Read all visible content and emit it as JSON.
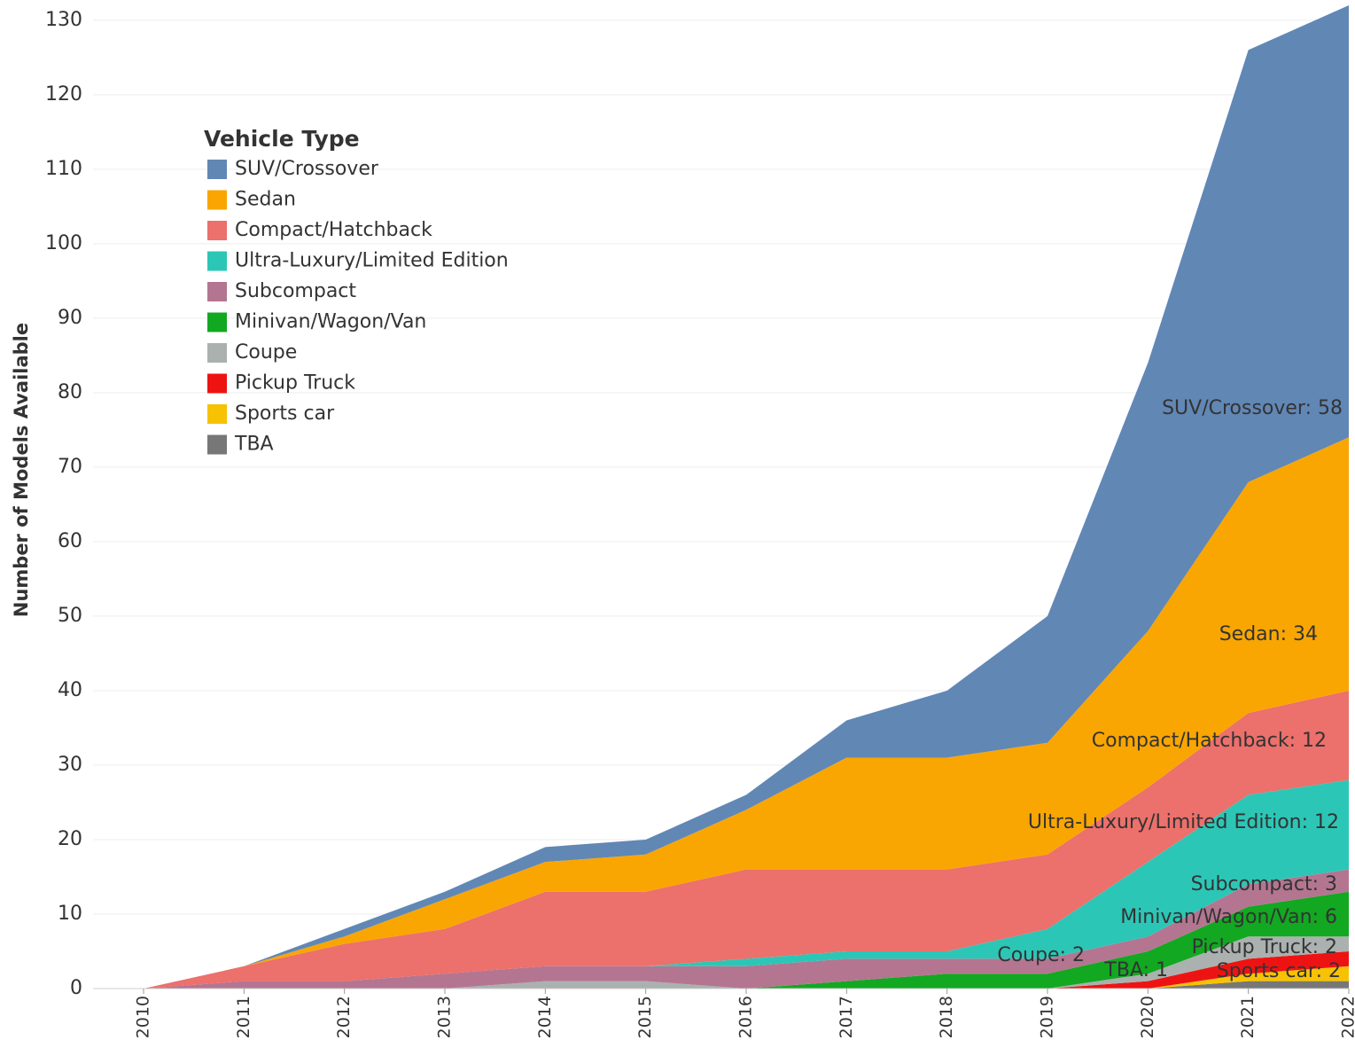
{
  "chart_data": {
    "type": "stacked-area",
    "y_label": "Number of Models Available",
    "legend_title": "Vehicle Type",
    "legend": "top-left",
    "grid": true,
    "categories": [
      "2010",
      "2011",
      "2012",
      "2013",
      "2014",
      "2015",
      "2016",
      "2017",
      "2018",
      "2019",
      "2020",
      "2021",
      "2022"
    ],
    "ylim": [
      0,
      132
    ],
    "yticks": [
      0,
      10,
      20,
      30,
      40,
      50,
      60,
      70,
      80,
      90,
      100,
      110,
      120,
      130
    ],
    "series": [
      {
        "name": "SUV/Crossover",
        "color": "#6187b5",
        "values": [
          0,
          0,
          1,
          1,
          2,
          2,
          2,
          5,
          9,
          17,
          36,
          58,
          58
        ],
        "value_labels": [
          null,
          null,
          null,
          null,
          null,
          null,
          null,
          null,
          null,
          null,
          null,
          null,
          "SUV/Crossover: 58"
        ]
      },
      {
        "name": "Sedan",
        "color": "#f9a602",
        "values": [
          0,
          0,
          1,
          4,
          4,
          5,
          8,
          15,
          15,
          15,
          21,
          31,
          34
        ],
        "value_labels": [
          null,
          null,
          null,
          null,
          null,
          null,
          null,
          null,
          null,
          null,
          null,
          null,
          "Sedan: 34"
        ]
      },
      {
        "name": "Compact/Hatchback",
        "color": "#ec706b",
        "values": [
          0,
          2,
          5,
          6,
          10,
          10,
          12,
          11,
          11,
          10,
          10,
          11,
          12
        ],
        "value_labels": [
          null,
          null,
          null,
          null,
          null,
          null,
          null,
          null,
          null,
          null,
          null,
          null,
          "Compact/Hatchback: 12"
        ]
      },
      {
        "name": "Ultra-Luxury/Limited Edition",
        "color": "#2cc6b6",
        "values": [
          0,
          0,
          0,
          0,
          0,
          0,
          1,
          1,
          1,
          4,
          10,
          12,
          12
        ],
        "value_labels": [
          null,
          null,
          null,
          null,
          null,
          null,
          null,
          null,
          null,
          null,
          null,
          null,
          "Ultra-Luxury/Limited Edition: 12"
        ]
      },
      {
        "name": "Subcompact",
        "color": "#b47591",
        "values": [
          0,
          1,
          1,
          2,
          2,
          2,
          3,
          3,
          2,
          2,
          2,
          3,
          3
        ],
        "value_labels": [
          null,
          null,
          null,
          null,
          null,
          null,
          null,
          null,
          null,
          null,
          null,
          null,
          "Subcompact: 3"
        ]
      },
      {
        "name": "Minivan/Wagon/Van",
        "color": "#12a821",
        "values": [
          0,
          0,
          0,
          0,
          0,
          0,
          0,
          1,
          2,
          2,
          3,
          4,
          6
        ],
        "value_labels": [
          null,
          null,
          null,
          null,
          null,
          null,
          null,
          null,
          null,
          null,
          null,
          null,
          "Minivan/Wagon/Van: 6"
        ]
      },
      {
        "name": "Coupe",
        "color": "#aab1af",
        "values": [
          0,
          0,
          0,
          0,
          1,
          1,
          0,
          0,
          0,
          0,
          1,
          3,
          2
        ],
        "value_labels": [
          null,
          null,
          null,
          null,
          null,
          null,
          null,
          null,
          null,
          null,
          null,
          null,
          "Coupe: 2"
        ]
      },
      {
        "name": "Pickup Truck",
        "color": "#ee1313",
        "values": [
          0,
          0,
          0,
          0,
          0,
          0,
          0,
          0,
          0,
          0,
          1,
          2,
          2
        ],
        "value_labels": [
          null,
          null,
          null,
          null,
          null,
          null,
          null,
          null,
          null,
          null,
          null,
          null,
          "Pickup Truck: 2"
        ]
      },
      {
        "name": "Sports car",
        "color": "#f6c203",
        "values": [
          0,
          0,
          0,
          0,
          0,
          0,
          0,
          0,
          0,
          0,
          0,
          1,
          2
        ],
        "value_labels": [
          null,
          null,
          null,
          null,
          null,
          null,
          null,
          null,
          null,
          null,
          null,
          null,
          "Sports car: 2"
        ]
      },
      {
        "name": "TBA",
        "color": "#777777",
        "values": [
          0,
          0,
          0,
          0,
          0,
          0,
          0,
          0,
          0,
          0,
          0,
          1,
          1
        ],
        "value_labels": [
          null,
          null,
          null,
          null,
          null,
          null,
          null,
          null,
          null,
          null,
          null,
          null,
          "TBA: 1"
        ]
      }
    ]
  }
}
